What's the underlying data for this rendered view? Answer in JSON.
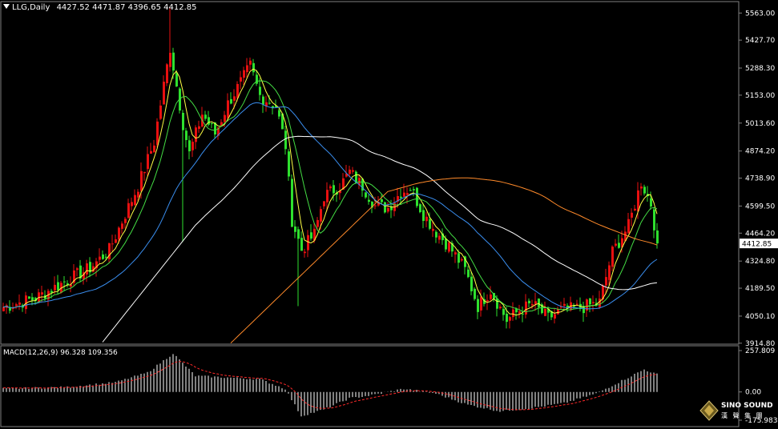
{
  "header": {
    "symbol": "LLG,Daily",
    "ohlc": "4427.52 4471.87 4396.65 4412.85"
  },
  "macd_label": "MACD(12,26,9) 96.328 109.356",
  "watermark": {
    "brand": "SINO SOUND",
    "sub": "漢 聲 集 團"
  },
  "colors": {
    "up": "#e81010",
    "down": "#2ee02e",
    "ma5": "#ffff44",
    "ma10": "#44dd44",
    "ma30": "#3a8eef",
    "ma60": "#ffffff",
    "ma120": "#ff8a2a",
    "macd_hist": "#ffffff",
    "macd_signal": "#ff2a2a",
    "grid": "#808080"
  },
  "chart_data": [
    {
      "type": "candlestick",
      "title": "",
      "symbol": "LLG",
      "timeframe": "Daily",
      "last_price": 4412.85,
      "y_ticks": [
        5563.0,
        5427.7,
        5288.3,
        5153.0,
        5013.6,
        4874.2,
        4738.9,
        4599.5,
        4464.2,
        4324.8,
        4189.5,
        4050.1,
        3914.8
      ],
      "ylim": [
        3910,
        5620
      ],
      "n_bars": 205,
      "overlays": [
        "MA5",
        "MA10",
        "MA30",
        "MA60",
        "MA120"
      ],
      "anchors": [
        [
          0,
          4095
        ],
        [
          10,
          4140
        ],
        [
          20,
          4230
        ],
        [
          27,
          4290
        ],
        [
          33,
          4380
        ],
        [
          38,
          4560
        ],
        [
          42,
          4700
        ],
        [
          47,
          4920
        ],
        [
          52,
          5390
        ],
        [
          56,
          5010
        ],
        [
          58,
          4860
        ],
        [
          62,
          5060
        ],
        [
          66,
          4960
        ],
        [
          70,
          5110
        ],
        [
          73,
          5190
        ],
        [
          77,
          5300
        ],
        [
          80,
          5150
        ],
        [
          85,
          5100
        ],
        [
          88,
          4900
        ],
        [
          90,
          4530
        ],
        [
          93,
          4380
        ],
        [
          97,
          4460
        ],
        [
          100,
          4650
        ],
        [
          105,
          4700
        ],
        [
          108,
          4770
        ],
        [
          112,
          4700
        ],
        [
          116,
          4600
        ],
        [
          120,
          4590
        ],
        [
          124,
          4670
        ],
        [
          127,
          4690
        ],
        [
          131,
          4560
        ],
        [
          135,
          4470
        ],
        [
          139,
          4400
        ],
        [
          144,
          4280
        ],
        [
          148,
          4100
        ],
        [
          152,
          4180
        ],
        [
          157,
          4030
        ],
        [
          161,
          4080
        ],
        [
          165,
          4110
        ],
        [
          170,
          4040
        ],
        [
          174,
          4080
        ],
        [
          180,
          4090
        ],
        [
          186,
          4120
        ],
        [
          190,
          4370
        ],
        [
          195,
          4500
        ],
        [
          199,
          4720
        ],
        [
          202,
          4610
        ],
        [
          204,
          4413
        ]
      ]
    },
    {
      "type": "bar",
      "title": "",
      "indicator": "MACD(12,26,9)",
      "macd": 96.328,
      "signal": 109.356,
      "y_ticks": [
        257.809,
        0.0,
        -175.983
      ],
      "ylim": [
        -175.983,
        257.809
      ],
      "anchors": [
        [
          0,
          20
        ],
        [
          20,
          30
        ],
        [
          35,
          60
        ],
        [
          45,
          120
        ],
        [
          53,
          240
        ],
        [
          60,
          100
        ],
        [
          70,
          90
        ],
        [
          80,
          80
        ],
        [
          88,
          20
        ],
        [
          93,
          -150
        ],
        [
          100,
          -110
        ],
        [
          108,
          -40
        ],
        [
          115,
          -20
        ],
        [
          125,
          20
        ],
        [
          135,
          -10
        ],
        [
          145,
          -80
        ],
        [
          155,
          -120
        ],
        [
          165,
          -100
        ],
        [
          175,
          -70
        ],
        [
          185,
          -10
        ],
        [
          195,
          90
        ],
        [
          200,
          140
        ],
        [
          204,
          110
        ]
      ]
    }
  ]
}
